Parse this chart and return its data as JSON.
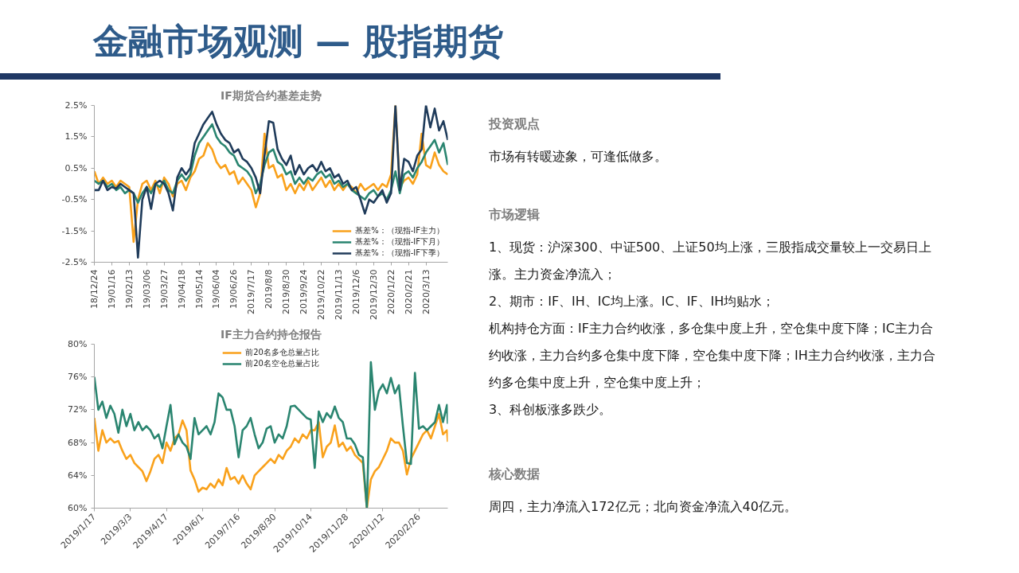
{
  "chart_data": [
    {
      "type": "other",
      "title": "金融市场观测 — 股指期货"
    },
    {
      "type": "line",
      "title": "IF期货合约基差走势",
      "categories": [
        "18/12/24",
        null,
        null,
        null,
        "19/01/16",
        null,
        null,
        null,
        "19/02/13",
        null,
        null,
        null,
        "19/03/06",
        null,
        null,
        null,
        "19/03/27",
        null,
        null,
        null,
        "19/04/18",
        null,
        null,
        null,
        "19/05/14",
        null,
        null,
        null,
        "19/06/04",
        null,
        null,
        null,
        "19/06/26",
        null,
        null,
        null,
        "2019/7/17",
        null,
        null,
        null,
        "2019/8/8",
        null,
        null,
        null,
        "2019/8/30",
        null,
        null,
        null,
        "2019/9/24",
        null,
        null,
        null,
        "2019/10/22",
        null,
        null,
        null,
        "2019/11/13",
        null,
        null,
        null,
        "2019/12/6",
        null,
        null,
        null,
        "2019/12/30",
        null,
        null,
        null,
        "2020/1/22",
        null,
        null,
        null,
        "2020/2/21",
        null,
        null,
        null,
        "2020/3/13",
        null,
        null,
        null,
        null,
        null
      ],
      "series": [
        {
          "name": "基差%：（现指-IF主力）",
          "color": "#f9a11b",
          "values": [
            0.4,
            0.0,
            0.2,
            0.0,
            0.1,
            -0.1,
            0.1,
            0.0,
            -0.1,
            -1.85,
            -0.5,
            0.0,
            0.1,
            -0.2,
            0.1,
            -0.3,
            0.2,
            0.0,
            -0.4,
            0.0,
            0.1,
            -0.2,
            0.2,
            0.4,
            0.8,
            0.9,
            1.3,
            1.1,
            0.7,
            0.5,
            0.6,
            0.3,
            0.4,
            0.0,
            0.2,
            0.0,
            -0.2,
            -0.75,
            -0.3,
            1.6,
            0.5,
            0.6,
            0.2,
            0.3,
            -0.2,
            0.0,
            -0.3,
            0.0,
            -0.2,
            0.1,
            -0.2,
            0.0,
            0.2,
            -0.1,
            0.1,
            -0.2,
            0.0,
            -0.2,
            0.0,
            -0.1,
            -0.3,
            0.0,
            -0.2,
            -0.1,
            0.0,
            -0.2,
            0.0,
            -0.1,
            0.3,
            2.5,
            -0.1,
            0.1,
            0.2,
            0.0,
            0.3,
            1.6,
            0.6,
            0.5,
            1.0,
            0.6,
            0.4,
            0.3
          ]
        },
        {
          "name": "基差%：（现指-IF下月）",
          "color": "#2a8570",
          "values": [
            0.1,
            0.0,
            0.1,
            -0.1,
            0.0,
            -0.2,
            -0.1,
            -0.3,
            -0.2,
            -0.3,
            -0.6,
            -0.3,
            -0.1,
            -0.3,
            0.0,
            -0.1,
            0.1,
            -0.2,
            -0.3,
            0.1,
            0.3,
            0.1,
            0.3,
            0.9,
            1.3,
            1.5,
            1.7,
            1.9,
            1.5,
            1.3,
            1.2,
            1.0,
            0.9,
            0.6,
            0.5,
            0.4,
            0.2,
            -0.3,
            0.0,
            0.6,
            1.0,
            1.1,
            0.7,
            0.6,
            0.3,
            0.4,
            0.0,
            0.2,
            0.0,
            0.2,
            0.1,
            0.3,
            0.4,
            0.2,
            0.3,
            0.0,
            0.1,
            -0.1,
            0.0,
            -0.2,
            -0.3,
            -0.4,
            -0.5,
            -0.3,
            -0.2,
            -0.4,
            -0.3,
            -0.5,
            -0.2,
            0.4,
            -0.3,
            0.3,
            0.4,
            0.2,
            0.5,
            0.7,
            1.0,
            1.2,
            1.4,
            1.0,
            1.3,
            0.6
          ]
        },
        {
          "name": "基差%：（现指-IF下季）",
          "color": "#1f3b5a",
          "values": [
            -0.2,
            -0.2,
            0.1,
            -0.2,
            -0.1,
            -0.15,
            0.0,
            -0.1,
            -0.2,
            -0.3,
            -2.35,
            -0.5,
            -0.1,
            -0.8,
            0.0,
            0.1,
            0.0,
            -0.3,
            -0.85,
            0.2,
            0.5,
            0.3,
            0.5,
            1.3,
            1.6,
            1.9,
            2.1,
            2.3,
            1.9,
            1.6,
            1.4,
            1.3,
            1.0,
            1.1,
            0.8,
            0.7,
            0.5,
            0.2,
            -0.3,
            0.9,
            2.0,
            1.95,
            1.1,
            0.8,
            0.6,
            0.9,
            0.3,
            0.6,
            0.3,
            0.5,
            0.6,
            0.4,
            0.7,
            0.4,
            0.5,
            0.2,
            0.3,
            0.0,
            0.1,
            -0.2,
            -0.1,
            -0.5,
            -0.95,
            -0.5,
            -0.6,
            -0.4,
            -0.2,
            -0.6,
            -0.3,
            2.5,
            -0.2,
            0.8,
            0.7,
            0.4,
            0.9,
            1.1,
            2.5,
            1.8,
            2.4,
            1.7,
            2.0,
            1.4
          ]
        }
      ],
      "ylim": [
        -2.5,
        2.5
      ],
      "yticks": [
        {
          "value": -2.5,
          "label": "-2.5%"
        },
        {
          "value": -1.5,
          "label": "-1.5%"
        },
        {
          "value": -0.5,
          "label": "-0.5%"
        },
        {
          "value": 0.5,
          "label": "0.5%"
        },
        {
          "value": 1.5,
          "label": "1.5%"
        },
        {
          "value": 2.5,
          "label": "2.5%"
        }
      ],
      "legend": "bottom right"
    },
    {
      "type": "line",
      "title": "IF主力合约持仓报告",
      "x": [
        "2019-01-17",
        "2019-01-22",
        "2019-01-27",
        "2019-02-01",
        "2019-02-06",
        "2019-02-11",
        "2019-02-16",
        "2019-02-21",
        "2019-02-26",
        "2019-03-03",
        "2019-03-08",
        "2019-03-13",
        "2019-03-18",
        "2019-03-23",
        "2019-03-28",
        "2019-04-02",
        "2019-04-07",
        "2019-04-12",
        "2019-04-17",
        "2019-04-22",
        "2019-04-27",
        "2019-05-02",
        "2019-05-07",
        "2019-05-12",
        "2019-05-17",
        "2019-05-22",
        "2019-05-27",
        "2019-06-01",
        "2019-06-06",
        "2019-06-11",
        "2019-06-16",
        "2019-06-21",
        "2019-06-26",
        "2019-07-01",
        "2019-07-06",
        "2019-07-11",
        "2019-07-16",
        "2019-07-21",
        "2019-07-26",
        "2019-07-31",
        "2019-08-05",
        "2019-08-10",
        "2019-08-15",
        "2019-08-20",
        "2019-08-25",
        "2019-08-30",
        "2019-09-04",
        "2019-09-09",
        "2019-09-14",
        "2019-09-19",
        "2019-09-24",
        "2019-09-29",
        "2019-10-04",
        "2019-10-09",
        "2019-10-14",
        "2019-10-19",
        "2019-10-24",
        "2019-10-29",
        "2019-11-03",
        "2019-11-08",
        "2019-11-13",
        "2019-11-18",
        "2019-11-23",
        "2019-11-28",
        "2019-12-03",
        "2019-12-08",
        "2019-12-13",
        "2019-12-18",
        "2019-12-23",
        "2019-12-28",
        "2020-01-02",
        "2020-01-07",
        "2020-01-12",
        "2020-01-17",
        "2020-01-22",
        "2020-01-27",
        "2020-02-01",
        "2020-02-06",
        "2020-02-11",
        "2020-02-16",
        "2020-02-21",
        "2020-02-26",
        "2020-03-02",
        "2020-03-07",
        "2020-03-12",
        "2020-03-17",
        "2020-03-22",
        "2020-03-27",
        "2020-04-01",
        "2020-04-02"
      ],
      "series": [
        {
          "name": "前20名多仓总量占比",
          "color": "#f9a11b",
          "values": [
            71.0,
            67.0,
            69.5,
            68.0,
            68.5,
            68.0,
            68.2,
            67.0,
            66.0,
            66.5,
            65.5,
            65.0,
            64.5,
            63.3,
            64.5,
            66.0,
            66.5,
            65.5,
            68.0,
            67.0,
            68.5,
            69.0,
            70.7,
            69.5,
            64.6,
            63.5,
            62.0,
            62.5,
            62.3,
            63.0,
            62.5,
            63.5,
            62.8,
            64.9,
            63.5,
            63.8,
            63.0,
            64.0,
            63.0,
            62.3,
            64.0,
            64.5,
            65.0,
            65.5,
            66.0,
            65.5,
            66.5,
            66.0,
            67.0,
            67.5,
            68.5,
            68.0,
            69.0,
            68.5,
            69.5,
            69.5,
            70.5,
            66.2,
            67.5,
            68.0,
            70.1,
            67.5,
            68.0,
            67.0,
            67.5,
            66.5,
            66.0,
            65.5,
            60.0,
            63.5,
            64.5,
            65.0,
            66.0,
            67.0,
            68.5,
            68.0,
            68.0,
            67.0,
            64.1,
            66.0,
            67.0,
            68.0,
            69.0,
            69.5,
            68.5,
            70.0,
            71.5,
            69.0,
            69.5,
            68.1
          ]
        },
        {
          "name": "前20名空仓总量占比",
          "color": "#2a8570",
          "values": [
            76.0,
            72.0,
            73.0,
            71.0,
            72.5,
            71.5,
            69.2,
            72.0,
            70.0,
            71.5,
            69.5,
            70.5,
            69.5,
            70.0,
            69.5,
            68.5,
            69.0,
            67.3,
            70.0,
            72.6,
            67.8,
            69.0,
            68.0,
            67.5,
            66.0,
            71.0,
            69.0,
            69.5,
            70.0,
            69.0,
            70.5,
            74.0,
            73.5,
            72.0,
            72.0,
            70.0,
            66.2,
            69.5,
            70.0,
            71.0,
            69.0,
            67.3,
            68.0,
            69.7,
            70.0,
            68.0,
            69.0,
            68.5,
            70.0,
            72.4,
            72.5,
            72.0,
            71.5,
            71.0,
            70.8,
            64.9,
            71.8,
            70.5,
            71.6,
            71.0,
            72.4,
            71.0,
            70.5,
            68.5,
            68.5,
            67.8,
            66.5,
            66.2,
            60.0,
            77.8,
            72.0,
            74.3,
            75.1,
            74.0,
            75.9,
            74.0,
            75.0,
            70.0,
            65.5,
            65.4,
            76.5,
            69.7,
            70.0,
            69.5,
            70.0,
            70.5,
            72.6,
            70.5,
            72.6,
            70.3
          ]
        }
      ],
      "xlim": [
        "2019-01-17",
        "2020-04-02"
      ],
      "xticks": [
        {
          "value": "2019-01-17",
          "label": "2019/1/17"
        },
        {
          "value": "2019-03-03",
          "label": "2019/3/3"
        },
        {
          "value": "2019-04-17",
          "label": "2019/4/17"
        },
        {
          "value": "2019-06-01",
          "label": "2019/6/1"
        },
        {
          "value": "2019-07-16",
          "label": "2019/7/16"
        },
        {
          "value": "2019-08-30",
          "label": "2019/8/30"
        },
        {
          "value": "2019-10-14",
          "label": "2019/10/14"
        },
        {
          "value": "2019-11-28",
          "label": "2019/11/28"
        },
        {
          "value": "2020-01-12",
          "label": "2020/1/12"
        },
        {
          "value": "2020-02-26",
          "label": "2020/2/26"
        }
      ],
      "ylim": [
        60,
        80
      ],
      "yticks": [
        {
          "value": 60,
          "label": "60%"
        },
        {
          "value": 64,
          "label": "64%"
        },
        {
          "value": 68,
          "label": "68%"
        },
        {
          "value": 72,
          "label": "72%"
        },
        {
          "value": 76,
          "label": "76%"
        },
        {
          "value": 80,
          "label": "80%"
        }
      ],
      "legend": "top"
    },
    {
      "type": "other",
      "title": "投资观点",
      "annotations": [
        "市场有转暖迹象，可逢低做多。"
      ]
    },
    {
      "type": "other",
      "title": "市场逻辑",
      "annotations": [
        "1、现货：沪深300、中证500、上证50均上涨，三股指成交量较上一交易日上涨。主力资金净流入；",
        "2、期市：IF、IH、IC均上涨。IC、IF、IH均贴水；",
        "机构持仓方面：IF主力合约收涨，多仓集中度上升，空仓集中度下降；IC主力合约收涨，主力合约多仓集中度下降，空仓集中度下降；IH主力合约收涨，主力合约多仓集中度上升，空仓集中度上升；",
        "3、科创板涨多跌少。"
      ]
    },
    {
      "type": "other",
      "title": "核心数据",
      "annotations": [
        "周四，主力净流入172亿元；北向资金净流入40亿元。"
      ]
    }
  ]
}
